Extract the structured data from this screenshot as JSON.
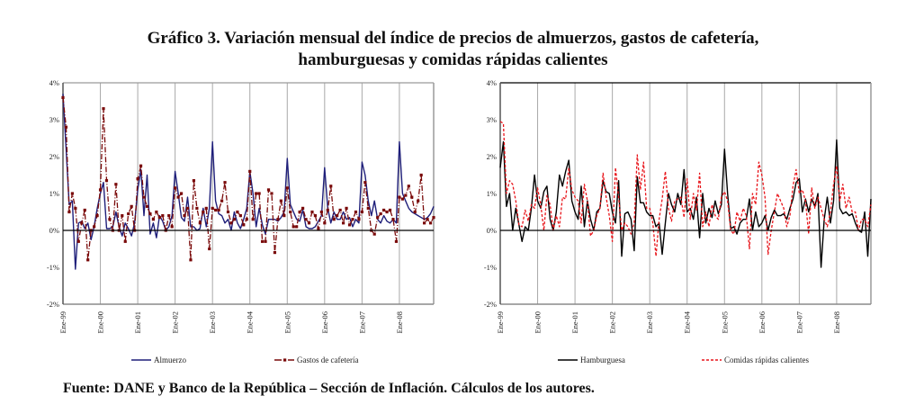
{
  "title_line1": "Gráfico 3. Variación mensual del índice de precios de almuerzos, gastos de cafetería,",
  "title_line2": "hamburguesas y comidas rápidas calientes",
  "source": "Fuente: DANE y Banco de la República – Sección de Inflación. Cálculos de los autores.",
  "chart_data": [
    {
      "type": "line",
      "title": "",
      "xlabel": "",
      "ylabel": "",
      "ylim": [
        -2,
        4
      ],
      "yticks": [
        "4%",
        "3%",
        "2%",
        "1%",
        "0%",
        "-1%",
        "-2%"
      ],
      "ytick_values": [
        4,
        3,
        2,
        1,
        0,
        -1,
        -2
      ],
      "xticks": [
        "Ene-99",
        "Ene-00",
        "Ene-01",
        "Ene-02",
        "Ene-03",
        "Ene-04",
        "Ene-05",
        "Ene-06",
        "Ene-07",
        "Ene-08"
      ],
      "x_start": "Ene-99",
      "months": 120,
      "grid": "vertical",
      "legend_position": "bottom",
      "series": [
        {
          "name": "Almuerzo",
          "color": "#1f1f7a",
          "style": "solid",
          "values": [
            3.7,
            2.2,
            0.7,
            0.8,
            -1.05,
            0.2,
            0.25,
            0.05,
            0.2,
            -0.25,
            0.1,
            0.6,
            1.0,
            1.3,
            0.05,
            0.05,
            0.1,
            0.5,
            0.1,
            -0.15,
            0.2,
            0.05,
            -0.15,
            0.2,
            1.1,
            1.65,
            0.4,
            1.5,
            -0.1,
            0.2,
            -0.2,
            0.4,
            0.25,
            0.0,
            0.1,
            0.4,
            1.6,
            1.0,
            0.35,
            0.25,
            0.9,
            0.1,
            0.1,
            0.0,
            0.05,
            0.6,
            0.1,
            0.6,
            2.4,
            0.8,
            0.45,
            0.4,
            0.2,
            0.3,
            0.0,
            0.5,
            0.2,
            0.05,
            0.3,
            0.6,
            1.6,
            1.0,
            0.1,
            0.6,
            0.15,
            -0.1,
            0.3,
            0.3,
            0.3,
            0.25,
            0.35,
            0.5,
            1.95,
            0.7,
            0.5,
            0.3,
            0.25,
            0.55,
            0.1,
            0.05,
            0.05,
            0.1,
            0.25,
            0.4,
            1.7,
            0.6,
            0.2,
            0.5,
            0.3,
            0.3,
            0.5,
            0.3,
            0.35,
            0.1,
            0.3,
            0.2,
            1.85,
            1.5,
            0.8,
            0.4,
            0.8,
            0.3,
            0.2,
            0.4,
            0.25,
            0.2,
            0.3,
            0.2,
            2.4,
            1.0,
            0.8,
            0.6,
            0.5,
            0.45,
            0.4,
            0.35,
            0.3,
            0.35,
            0.45,
            0.65
          ]
        },
        {
          "name": "Gastos de cafetería",
          "color": "#7a0a0a",
          "style": "dashed-marker",
          "values": [
            3.6,
            2.8,
            0.5,
            1.0,
            0.6,
            -0.3,
            0.2,
            0.55,
            -0.8,
            0.0,
            0.1,
            0.4,
            1.1,
            3.3,
            1.35,
            0.3,
            0.0,
            1.25,
            0.0,
            0.4,
            -0.3,
            0.45,
            0.65,
            0.0,
            1.4,
            1.75,
            0.9,
            0.65,
            0.45,
            0.3,
            0.5,
            0.35,
            0.4,
            0.0,
            0.4,
            0.1,
            1.15,
            0.9,
            1.0,
            0.4,
            0.6,
            -0.8,
            1.35,
            0.6,
            0.2,
            0.5,
            0.6,
            -0.5,
            0.6,
            0.55,
            0.55,
            0.8,
            1.3,
            0.5,
            0.2,
            0.3,
            0.5,
            0.4,
            0.15,
            0.3,
            1.6,
            0.3,
            1.0,
            1.0,
            -0.3,
            -0.3,
            1.1,
            1.0,
            -0.6,
            0.3,
            0.8,
            0.4,
            1.15,
            0.5,
            0.1,
            0.1,
            0.5,
            0.6,
            0.3,
            0.2,
            0.5,
            0.4,
            0.05,
            0.5,
            0.2,
            0.55,
            1.2,
            0.3,
            0.4,
            0.55,
            0.2,
            0.6,
            0.15,
            0.3,
            0.5,
            0.3,
            0.5,
            1.3,
            0.6,
            0.0,
            -0.1,
            0.35,
            0.45,
            0.55,
            0.5,
            0.55,
            0.3,
            -0.3,
            0.9,
            0.85,
            0.95,
            1.2,
            0.9,
            0.5,
            0.8,
            1.5,
            0.2,
            0.3,
            0.2,
            0.35
          ]
        }
      ]
    },
    {
      "type": "line",
      "title": "",
      "xlabel": "",
      "ylabel": "",
      "ylim": [
        -2,
        4
      ],
      "yticks": [
        "4%",
        "3%",
        "2%",
        "1%",
        "0%",
        "-1%",
        "-2%"
      ],
      "ytick_values": [
        4,
        3,
        2,
        1,
        0,
        -1,
        -2
      ],
      "xticks": [
        "Ene-99",
        "Ene-00",
        "Ene-01",
        "Ene-02",
        "Ene-03",
        "Ene-04",
        "Ene-05",
        "Ene-06",
        "Ene-07",
        "Ene-08"
      ],
      "x_start": "Ene-99",
      "months": 120,
      "grid": "vertical",
      "legend_position": "bottom",
      "series": [
        {
          "name": "Hamburguesa",
          "color": "#000000",
          "style": "solid",
          "values": [
            1.7,
            2.4,
            0.65,
            1.0,
            0.0,
            0.6,
            0.15,
            -0.3,
            0.1,
            0.0,
            0.6,
            1.5,
            0.8,
            0.6,
            1.05,
            1.2,
            0.3,
            0.0,
            0.5,
            1.5,
            1.2,
            1.6,
            1.9,
            0.8,
            0.5,
            0.3,
            1.2,
            0.1,
            0.8,
            0.3,
            0.0,
            0.5,
            0.6,
            1.35,
            1.05,
            1.0,
            0.5,
            0.2,
            1.35,
            -0.7,
            0.45,
            0.5,
            0.3,
            -0.55,
            1.45,
            0.75,
            0.75,
            0.5,
            0.4,
            0.4,
            0.1,
            0.2,
            -0.65,
            0.2,
            1.0,
            0.7,
            0.5,
            1.0,
            0.7,
            1.65,
            0.5,
            0.6,
            0.3,
            0.9,
            -0.2,
            1.0,
            0.2,
            0.6,
            0.35,
            0.8,
            0.45,
            0.7,
            2.2,
            1.0,
            0.05,
            0.1,
            -0.1,
            0.2,
            0.3,
            0.3,
            0.85,
            0.0,
            0.5,
            0.1,
            0.2,
            0.4,
            0.0,
            0.35,
            0.55,
            0.4,
            0.4,
            0.45,
            0.3,
            0.6,
            0.85,
            1.3,
            1.4,
            0.5,
            0.85,
            0.5,
            0.85,
            0.65,
            1.0,
            -1.0,
            0.3,
            0.9,
            0.2,
            0.8,
            2.45,
            0.6,
            0.45,
            0.5,
            0.4,
            0.45,
            0.2,
            0.0,
            -0.05,
            0.5,
            -0.7,
            0.85
          ]
        },
        {
          "name": "Comidas rápidas calientes",
          "color": "#e8141a",
          "style": "dashed",
          "values": [
            2.95,
            2.9,
            1.0,
            1.35,
            1.25,
            0.8,
            0.15,
            0.1,
            0.55,
            0.25,
            0.7,
            0.6,
            1.15,
            0.7,
            0.0,
            0.95,
            0.7,
            0.0,
            0.4,
            0.1,
            0.9,
            0.85,
            1.7,
            1.1,
            0.9,
            0.8,
            0.2,
            1.25,
            0.8,
            -0.15,
            0.0,
            0.4,
            0.6,
            1.55,
            0.9,
            0.4,
            -0.3,
            1.7,
            0.9,
            0.0,
            0.2,
            0.1,
            -0.1,
            0.2,
            2.05,
            1.1,
            1.85,
            0.6,
            0.6,
            0.2,
            -0.7,
            0.3,
            0.85,
            1.6,
            0.6,
            0.25,
            0.8,
            0.85,
            0.9,
            0.35,
            1.4,
            0.3,
            1.0,
            0.55,
            1.55,
            0.1,
            0.5,
            0.1,
            0.7,
            0.4,
            0.3,
            0.9,
            1.05,
            0.8,
            0.0,
            -0.1,
            0.5,
            0.25,
            0.6,
            0.4,
            -0.5,
            1.0,
            0.7,
            1.85,
            1.5,
            0.9,
            -0.65,
            0.0,
            0.5,
            1.0,
            0.8,
            0.6,
            0.1,
            0.4,
            1.2,
            1.65,
            1.0,
            1.1,
            0.8,
            -0.1,
            1.15,
            0.6,
            0.9,
            0.6,
            0.3,
            0.1,
            0.5,
            1.25,
            1.75,
            0.8,
            1.25,
            0.6,
            0.9,
            0.5,
            0.5,
            0.0,
            0.3,
            0.3,
            0.1,
            0.7
          ]
        }
      ]
    }
  ]
}
